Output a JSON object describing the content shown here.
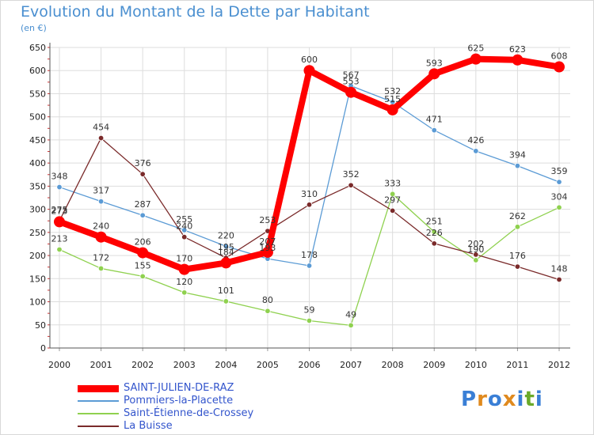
{
  "title": "Evolution du Montant de la Dette par Habitant",
  "subtitle": "(en €)",
  "logo": {
    "text": "Proxiti",
    "letters": [
      "P",
      "r",
      "o",
      "x",
      "i",
      "t",
      "i"
    ],
    "colors": [
      "#3a7fd6",
      "#e08a1e",
      "#3a7fd6",
      "#e08a1e",
      "#3a7fd6",
      "#6aaa2a",
      "#3a7fd6"
    ]
  },
  "chart_data": {
    "type": "line",
    "title": "Evolution du Montant de la Dette par Habitant",
    "ylabel": "(en €)",
    "xlabel": "",
    "x": [
      "2000",
      "2001",
      "2002",
      "2003",
      "2004",
      "2005",
      "2006",
      "2007",
      "2008",
      "2009",
      "2010",
      "2011",
      "2012"
    ],
    "ylim": [
      0,
      650
    ],
    "yticks": [
      "0",
      "50",
      "100",
      "150",
      "200",
      "250",
      "300",
      "350",
      "400",
      "450",
      "500",
      "550",
      "600",
      "650"
    ],
    "grid": true,
    "legend_position": "bottom-left",
    "series": [
      {
        "name": "SAINT-JULIEN-DE-RAZ",
        "color": "#ff0000",
        "values": [
          273,
          240,
          206,
          170,
          184,
          207,
          600,
          553,
          515,
          593,
          625,
          623,
          608
        ],
        "labels": [
          "273",
          "240",
          "206",
          "170",
          "184",
          "207",
          "600",
          "553",
          "515",
          "593",
          "625",
          "623",
          "608"
        ]
      },
      {
        "name": "Pommiers-la-Placette",
        "color": "#5b9bd5",
        "values": [
          348,
          317,
          287,
          255,
          220,
          193,
          178,
          567,
          532,
          471,
          426,
          394,
          359
        ],
        "labels": [
          "348",
          "317",
          "287",
          "255",
          "220",
          "193",
          "178",
          "567",
          "532",
          "471",
          "426",
          "394",
          "359"
        ]
      },
      {
        "name": "Saint-Étienne-de-Crossey",
        "color": "#8fd14f",
        "values": [
          213,
          172,
          155,
          120,
          101,
          80,
          59,
          49,
          333,
          251,
          190,
          262,
          304
        ],
        "labels": [
          "213",
          "172",
          "155",
          "120",
          "101",
          "80",
          "59",
          "49",
          "333",
          "251",
          "190",
          "262",
          "304"
        ]
      },
      {
        "name": "La Buisse",
        "color": "#7a2a2a",
        "values": [
          275,
          454,
          376,
          240,
          195,
          253,
          310,
          352,
          297,
          226,
          202,
          176,
          148
        ],
        "labels": [
          "275",
          "454",
          "376",
          "240",
          "195",
          "253",
          "310",
          "352",
          "297",
          "226",
          "202",
          "176",
          "148"
        ]
      }
    ]
  }
}
